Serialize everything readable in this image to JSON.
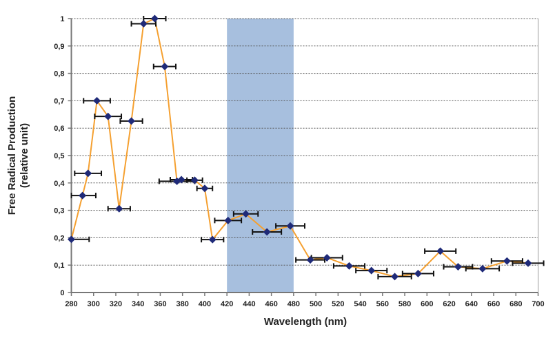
{
  "chart_data": {
    "type": "line",
    "title": "",
    "xlabel": "Wavelength (nm)",
    "ylabel": [
      "Free Radical Production",
      "(relative unit)"
    ],
    "xlim": [
      280,
      700
    ],
    "ylim": [
      0,
      1
    ],
    "x_ticks": [
      "280",
      "300",
      "320",
      "340",
      "360",
      "380",
      "400",
      "420",
      "440",
      "460",
      "480",
      "500",
      "520",
      "540",
      "560",
      "580",
      "600",
      "620",
      "640",
      "660",
      "680",
      "700"
    ],
    "y_ticks": [
      "0",
      "0,1",
      "0,2",
      "0,3",
      "0,4",
      "0,5",
      "0,6",
      "0,7",
      "0,8",
      "0,9",
      "1"
    ],
    "grid": "horizontal dotted",
    "highlight_band": [
      420,
      480
    ],
    "colors": {
      "line": "#F5A030",
      "marker": "#1F2A78",
      "band": "#A7BFDE",
      "errorbar": "#111111"
    },
    "series": [
      {
        "points": [
          {
            "x": 280,
            "y": 0.194,
            "xerr": 16
          },
          {
            "x": 290,
            "y": 0.354,
            "xerr": 12
          },
          {
            "x": 295,
            "y": 0.435,
            "xerr": 12
          },
          {
            "x": 303,
            "y": 0.7,
            "xerr": 12
          },
          {
            "x": 313,
            "y": 0.643,
            "xerr": 12
          },
          {
            "x": 323,
            "y": 0.306,
            "xerr": 10
          },
          {
            "x": 334,
            "y": 0.626,
            "xerr": 10
          },
          {
            "x": 345,
            "y": 0.981,
            "xerr": 11
          },
          {
            "x": 355,
            "y": 1.0,
            "xerr": 10
          },
          {
            "x": 364,
            "y": 0.825,
            "xerr": 10
          },
          {
            "x": 375,
            "y": 0.406,
            "xerr": 16
          },
          {
            "x": 379,
            "y": 0.412,
            "xerr": 10
          },
          {
            "x": 391,
            "y": 0.41,
            "xerr": 7
          },
          {
            "x": 400,
            "y": 0.38,
            "xerr": 7
          },
          {
            "x": 407,
            "y": 0.193,
            "xerr": 10
          },
          {
            "x": 421,
            "y": 0.263,
            "xerr": 12
          },
          {
            "x": 437,
            "y": 0.287,
            "xerr": 11
          },
          {
            "x": 456,
            "y": 0.221,
            "xerr": 13
          },
          {
            "x": 477,
            "y": 0.243,
            "xerr": 13
          },
          {
            "x": 495,
            "y": 0.119,
            "xerr": 13
          },
          {
            "x": 510,
            "y": 0.127,
            "xerr": 14
          },
          {
            "x": 530,
            "y": 0.097,
            "xerr": 14
          },
          {
            "x": 550,
            "y": 0.08,
            "xerr": 14
          },
          {
            "x": 571,
            "y": 0.058,
            "xerr": 15
          },
          {
            "x": 592,
            "y": 0.069,
            "xerr": 14
          },
          {
            "x": 612,
            "y": 0.151,
            "xerr": 14
          },
          {
            "x": 628,
            "y": 0.094,
            "xerr": 13
          },
          {
            "x": 650,
            "y": 0.087,
            "xerr": 15
          },
          {
            "x": 672,
            "y": 0.115,
            "xerr": 14
          },
          {
            "x": 691,
            "y": 0.107,
            "xerr": 14
          }
        ]
      }
    ]
  }
}
